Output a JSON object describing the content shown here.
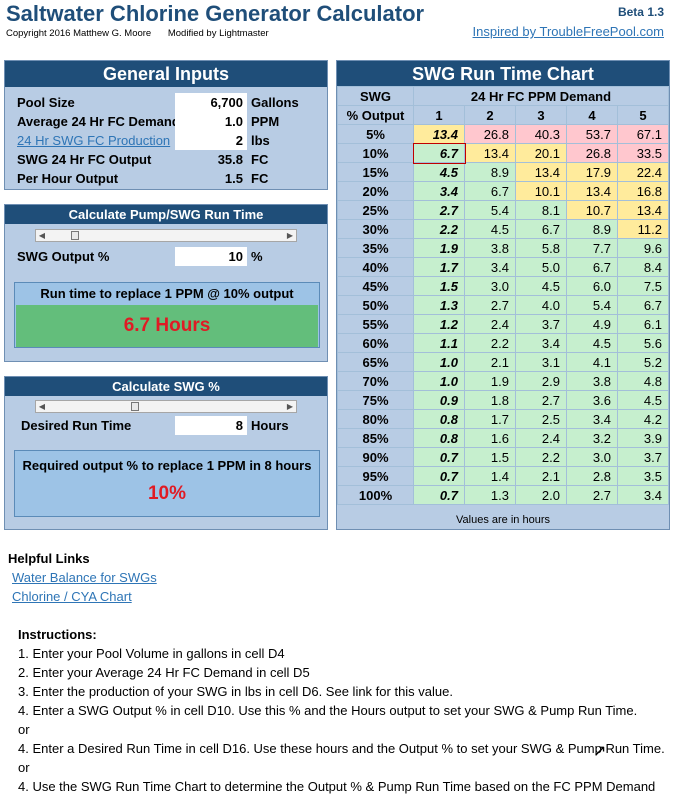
{
  "header": {
    "title": "Saltwater Chlorine Generator Calculator",
    "copyright": "Copyright 2016 Matthew G. Moore",
    "modified": "Modified by Lightmaster",
    "beta": "Beta 1.3",
    "inspired": "Inspired by TroubleFreePool.com"
  },
  "general": {
    "title": "General Inputs",
    "rows": [
      {
        "label": "Pool Size",
        "value": "6,700",
        "unit": "Gallons"
      },
      {
        "label": "Average 24 Hr FC Demand",
        "value": "1.0",
        "unit": "PPM"
      },
      {
        "label": "24 Hr SWG FC Production",
        "value": "2",
        "unit": "lbs"
      },
      {
        "label": "SWG 24 Hr FC Output",
        "value": "35.8",
        "unit": "FC"
      },
      {
        "label": "Per Hour Output",
        "value": "1.5",
        "unit": "FC"
      }
    ]
  },
  "pump": {
    "title": "Calculate Pump/SWG Run Time",
    "label": "SWG Output %",
    "value": "10",
    "unit": "%",
    "result_label": "Run time to replace 1 PPM @ 10% output",
    "result": "6.7 Hours",
    "slider_level": 0.1
  },
  "swg": {
    "title": "Calculate SWG %",
    "label": "Desired Run Time",
    "value": "8",
    "unit": "Hours",
    "result_label": "Required output % to replace 1 PPM in 8 hours",
    "result": "10%",
    "slider_level": 0.36
  },
  "chart": {
    "title": "SWG Run Time Chart",
    "col_header_1": "SWG",
    "col_header_2": "% Output",
    "demand_header": "24 Hr FC PPM Demand",
    "demand_cols": [
      "1",
      "2",
      "3",
      "4",
      "5"
    ],
    "footer": "Values are in hours",
    "rows": [
      {
        "label": "5%",
        "values": [
          "13.4",
          "26.8",
          "40.3",
          "53.7",
          "67.1"
        ]
      },
      {
        "label": "10%",
        "values": [
          "6.7",
          "13.4",
          "20.1",
          "26.8",
          "33.5"
        ]
      },
      {
        "label": "15%",
        "values": [
          "4.5",
          "8.9",
          "13.4",
          "17.9",
          "22.4"
        ]
      },
      {
        "label": "20%",
        "values": [
          "3.4",
          "6.7",
          "10.1",
          "13.4",
          "16.8"
        ]
      },
      {
        "label": "25%",
        "values": [
          "2.7",
          "5.4",
          "8.1",
          "10.7",
          "13.4"
        ]
      },
      {
        "label": "30%",
        "values": [
          "2.2",
          "4.5",
          "6.7",
          "8.9",
          "11.2"
        ]
      },
      {
        "label": "35%",
        "values": [
          "1.9",
          "3.8",
          "5.8",
          "7.7",
          "9.6"
        ]
      },
      {
        "label": "40%",
        "values": [
          "1.7",
          "3.4",
          "5.0",
          "6.7",
          "8.4"
        ]
      },
      {
        "label": "45%",
        "values": [
          "1.5",
          "3.0",
          "4.5",
          "6.0",
          "7.5"
        ]
      },
      {
        "label": "50%",
        "values": [
          "1.3",
          "2.7",
          "4.0",
          "5.4",
          "6.7"
        ]
      },
      {
        "label": "55%",
        "values": [
          "1.2",
          "2.4",
          "3.7",
          "4.9",
          "6.1"
        ]
      },
      {
        "label": "60%",
        "values": [
          "1.1",
          "2.2",
          "3.4",
          "4.5",
          "5.6"
        ]
      },
      {
        "label": "65%",
        "values": [
          "1.0",
          "2.1",
          "3.1",
          "4.1",
          "5.2"
        ]
      },
      {
        "label": "70%",
        "values": [
          "1.0",
          "1.9",
          "2.9",
          "3.8",
          "4.8"
        ]
      },
      {
        "label": "75%",
        "values": [
          "0.9",
          "1.8",
          "2.7",
          "3.6",
          "4.5"
        ]
      },
      {
        "label": "80%",
        "values": [
          "0.8",
          "1.7",
          "2.5",
          "3.4",
          "4.2"
        ]
      },
      {
        "label": "85%",
        "values": [
          "0.8",
          "1.6",
          "2.4",
          "3.2",
          "3.9"
        ]
      },
      {
        "label": "90%",
        "values": [
          "0.7",
          "1.5",
          "2.2",
          "3.0",
          "3.7"
        ]
      },
      {
        "label": "95%",
        "values": [
          "0.7",
          "1.4",
          "2.1",
          "2.8",
          "3.5"
        ]
      },
      {
        "label": "100%",
        "values": [
          "0.7",
          "1.3",
          "2.0",
          "2.7",
          "3.4"
        ]
      }
    ]
  },
  "colors": {
    "red": "#ffc7ce",
    "yellow": "#ffeb9c",
    "green": "#c6efce",
    "navy": "#1f4e79",
    "panel": "#b8cce4",
    "result_green": "#63be7b",
    "result_red": "#e01b24"
  },
  "links": {
    "title": "Helpful Links",
    "items": [
      "Water Balance for SWGs",
      "Chlorine / CYA Chart"
    ]
  },
  "instructions": {
    "title": "Instructions:",
    "lines": [
      "1. Enter your Pool Volume in gallons in cell D4",
      "2. Enter your Average 24 Hr FC Demand in cell D5",
      "3. Enter the production of your SWG in lbs in cell D6.  See link for this value.",
      "4. Enter a SWG Output % in cell D10.  Use this % and the Hours output to set your SWG & Pump Run Time.",
      "or",
      "4. Enter a Desired Run Time in cell D16.  Use these hours and the Output % to set your SWG & Pump Run Time.",
      "or",
      "4. Use the SWG Run Time Chart to determine the Output % & Pump Run Time based on the FC PPM Demand"
    ]
  }
}
